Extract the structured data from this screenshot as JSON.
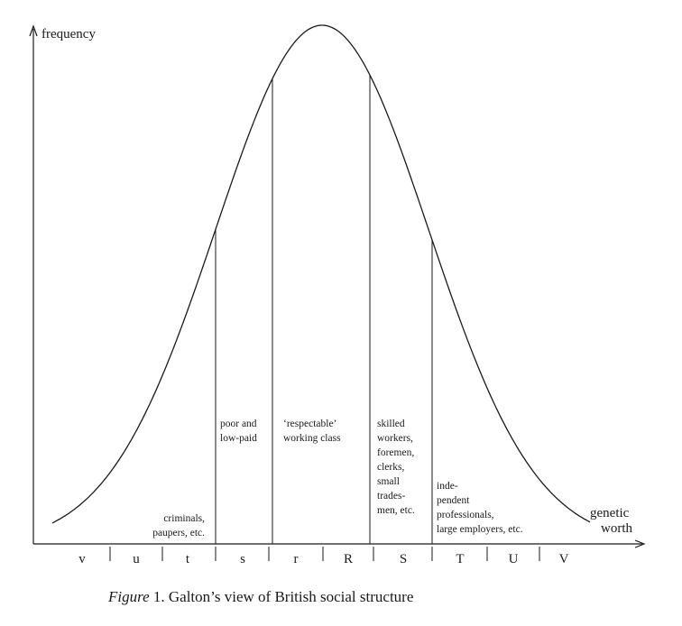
{
  "axes": {
    "y_label": "frequency",
    "x_label_lines": [
      "genetic",
      "worth"
    ]
  },
  "regions": [
    {
      "lines": [
        "criminals,",
        "paupers, etc."
      ]
    },
    {
      "lines": [
        "poor and",
        "low-paid"
      ]
    },
    {
      "lines": [
        "‘respectable’",
        "working class"
      ]
    },
    {
      "lines": [
        "skilled",
        "workers,",
        "foremen,",
        "clerks,",
        "small",
        "trades-",
        "men, etc."
      ]
    },
    {
      "lines": [
        "inde-",
        "pendent",
        "professionals,",
        "large employers, etc."
      ]
    }
  ],
  "class_letters": [
    "v",
    "u",
    "t",
    "s",
    "r",
    "R",
    "S",
    "T",
    "U",
    "V"
  ],
  "caption": {
    "italic": "Figure",
    "rest": " 1. Galton’s view of British social structure"
  }
}
